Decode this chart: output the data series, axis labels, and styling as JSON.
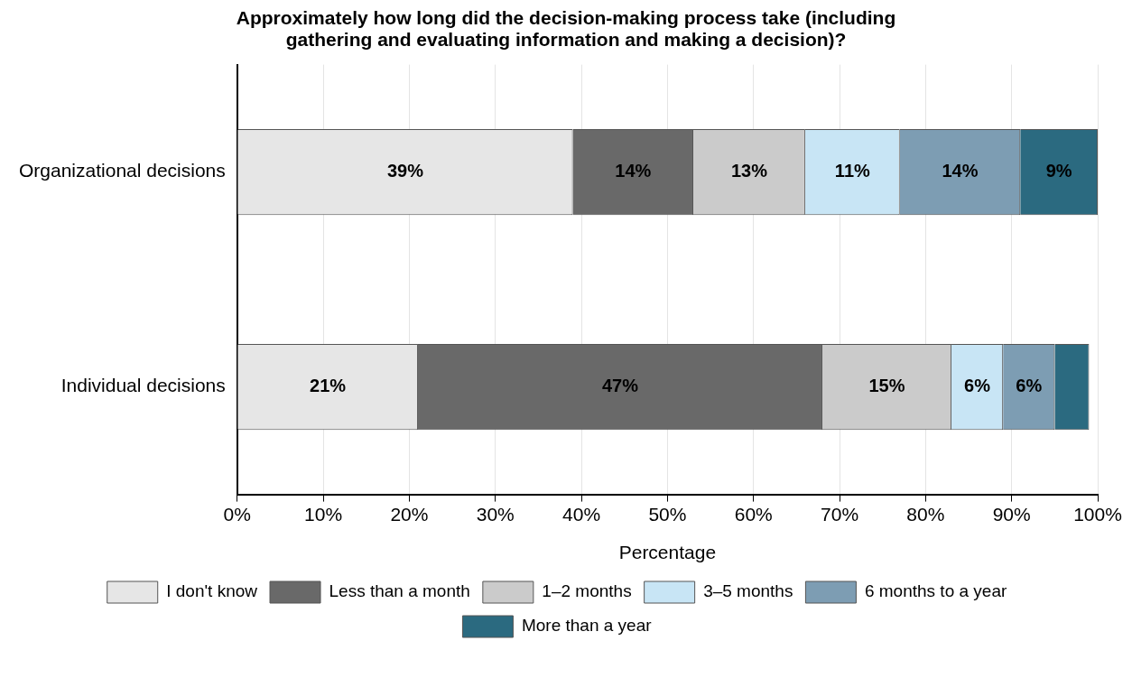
{
  "chart_data": {
    "type": "bar",
    "orientation": "horizontal",
    "stacked": true,
    "title": "Approximately how long did the decision-making process take (including gathering and evaluating information and making a decision)?",
    "xlabel": "Percentage",
    "categories": [
      "Organizational decisions",
      "Individual decisions"
    ],
    "xlim": [
      0,
      100
    ],
    "xticks": [
      {
        "value": 0,
        "label": "0%"
      },
      {
        "value": 10,
        "label": "10%"
      },
      {
        "value": 20,
        "label": "20%"
      },
      {
        "value": 30,
        "label": "30%"
      },
      {
        "value": 40,
        "label": "40%"
      },
      {
        "value": 50,
        "label": "50%"
      },
      {
        "value": 60,
        "label": "60%"
      },
      {
        "value": 70,
        "label": "70%"
      },
      {
        "value": 80,
        "label": "80%"
      },
      {
        "value": 90,
        "label": "90%"
      },
      {
        "value": 100,
        "label": "100%"
      }
    ],
    "grid": "x",
    "legend": "bottom",
    "series": [
      {
        "name": "I don't know",
        "color": "#e6e6e6",
        "values": [
          39,
          21
        ],
        "value_labels": [
          "39%",
          "21%"
        ]
      },
      {
        "name": "Less than a month",
        "color": "#696969",
        "values": [
          14,
          47
        ],
        "value_labels": [
          "14%",
          "47%"
        ]
      },
      {
        "name": "1–2 months",
        "color": "#cbcbcb",
        "values": [
          13,
          15
        ],
        "value_labels": [
          "13%",
          "15%"
        ]
      },
      {
        "name": "3–5 months",
        "color": "#c8e5f5",
        "values": [
          11,
          6
        ],
        "value_labels": [
          "11%",
          "6%"
        ]
      },
      {
        "name": "6 months to a year",
        "color": "#7d9db3",
        "values": [
          14,
          6
        ],
        "value_labels": [
          "14%",
          "6%"
        ]
      },
      {
        "name": "More than a year",
        "color": "#2b6a80",
        "values": [
          9,
          4
        ],
        "value_labels": [
          "9%",
          null
        ]
      }
    ]
  }
}
